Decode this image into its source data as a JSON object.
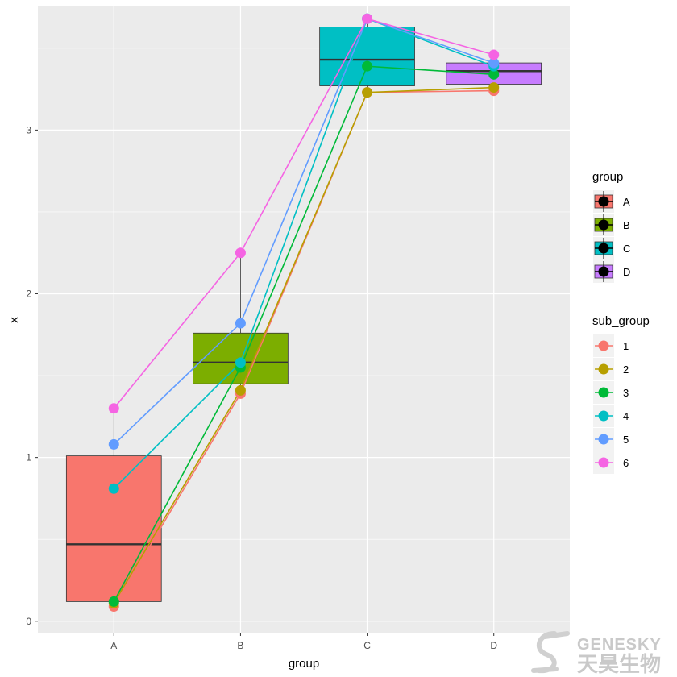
{
  "chart_data": {
    "type": "box+line+scatter",
    "categories": [
      "A",
      "B",
      "C",
      "D"
    ],
    "xlabel": "group",
    "ylabel": "x",
    "ylim": [
      -0.07,
      3.76
    ],
    "yticks": [
      0,
      1,
      2,
      3
    ],
    "grid": true,
    "legend_position": "right",
    "boxes": [
      {
        "group": "A",
        "q1": 0.12,
        "median": 0.47,
        "q3": 1.01,
        "whisker_low": 0.09,
        "whisker_high": 1.3,
        "color": "#F8766D"
      },
      {
        "group": "B",
        "q1": 1.45,
        "median": 1.58,
        "q3": 1.76,
        "whisker_low": 1.39,
        "whisker_high": 2.25,
        "color": "#7CAE00"
      },
      {
        "group": "C",
        "q1": 3.27,
        "median": 3.43,
        "q3": 3.63,
        "whisker_low": 3.22,
        "whisker_high": 3.68,
        "color": "#00BFC4"
      },
      {
        "group": "D",
        "q1": 3.28,
        "median": 3.36,
        "q3": 3.41,
        "whisker_low": 3.24,
        "whisker_high": 3.46,
        "color": "#C77CFF"
      }
    ],
    "series": [
      {
        "name": "1",
        "color": "#F8766D",
        "values": [
          0.09,
          1.39,
          3.23,
          3.24
        ]
      },
      {
        "name": "2",
        "color": "#B79F00",
        "values": [
          0.11,
          1.41,
          3.23,
          3.26
        ]
      },
      {
        "name": "3",
        "color": "#00BA38",
        "values": [
          0.12,
          1.55,
          3.39,
          3.34
        ]
      },
      {
        "name": "4",
        "color": "#00BFC4",
        "values": [
          0.81,
          1.58,
          3.68,
          3.39
        ]
      },
      {
        "name": "5",
        "color": "#619CFF",
        "values": [
          1.08,
          1.82,
          3.68,
          3.41
        ]
      },
      {
        "name": "6",
        "color": "#F564E3",
        "values": [
          1.3,
          2.25,
          3.68,
          3.46
        ]
      }
    ]
  },
  "legend": {
    "group_title": "group",
    "group_items": [
      {
        "label": "A",
        "color": "#F8766D"
      },
      {
        "label": "B",
        "color": "#7CAE00"
      },
      {
        "label": "C",
        "color": "#00BFC4"
      },
      {
        "label": "D",
        "color": "#C77CFF"
      }
    ],
    "sub_group_title": "sub_group",
    "sub_group_items": [
      {
        "label": "1",
        "color": "#F8766D"
      },
      {
        "label": "2",
        "color": "#B79F00"
      },
      {
        "label": "3",
        "color": "#00BA38"
      },
      {
        "label": "4",
        "color": "#00BFC4"
      },
      {
        "label": "5",
        "color": "#619CFF"
      },
      {
        "label": "6",
        "color": "#F564E3"
      }
    ]
  },
  "watermark": {
    "brand_en": "GENESKY",
    "brand_zh": "天昊生物"
  },
  "colors": {
    "panel_bg": "#EBEBEB",
    "grid_major": "#FFFFFF",
    "box_outline": "#333333"
  }
}
